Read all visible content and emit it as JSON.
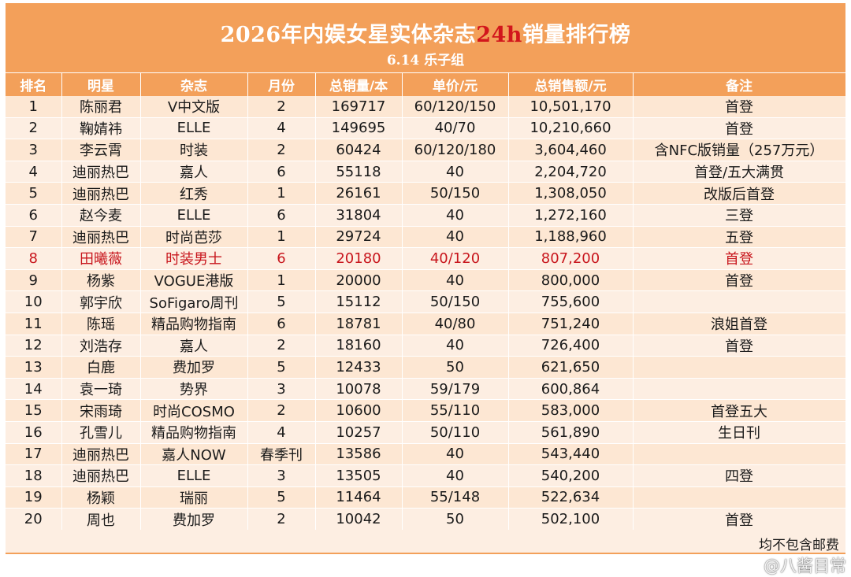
{
  "header": {
    "title_part1": "2026年内娱女星实体杂志",
    "title_accent": "24h",
    "title_part2": "销量排行榜",
    "subtitle": "6.14 乐子组"
  },
  "colors": {
    "header_orange": "#f3a05a",
    "row_peach": "#fde7d3",
    "accent_red": "#d2161c",
    "highlight_red": "#c8161d"
  },
  "table": {
    "columns": [
      "排名",
      "明星",
      "杂志",
      "月份",
      "总销量/本",
      "单价/元",
      "总销售额/元",
      "备注"
    ],
    "rows": [
      {
        "rank": "1",
        "star": "陈丽君",
        "magazine": "V中文版",
        "month": "2",
        "units": "169717",
        "price": "60/120/150",
        "revenue": "10,501,170",
        "note": "首登"
      },
      {
        "rank": "2",
        "star": "鞠婧祎",
        "magazine": "ELLE",
        "month": "4",
        "units": "149695",
        "price": "40/70",
        "revenue": "10,210,660",
        "note": "首登"
      },
      {
        "rank": "3",
        "star": "李云霄",
        "magazine": "时装",
        "month": "2",
        "units": "60424",
        "price": "60/120/180",
        "revenue": "3,604,460",
        "note": "含NFC版销量（257万元）"
      },
      {
        "rank": "4",
        "star": "迪丽热巴",
        "magazine": "嘉人",
        "month": "6",
        "units": "55118",
        "price": "40",
        "revenue": "2,204,720",
        "note": "首登/五大满贯"
      },
      {
        "rank": "5",
        "star": "迪丽热巴",
        "magazine": "红秀",
        "month": "1",
        "units": "26161",
        "price": "50/150",
        "revenue": "1,308,050",
        "note": "改版后首登"
      },
      {
        "rank": "6",
        "star": "赵今麦",
        "magazine": "ELLE",
        "month": "6",
        "units": "31804",
        "price": "40",
        "revenue": "1,272,160",
        "note": "三登"
      },
      {
        "rank": "7",
        "star": "迪丽热巴",
        "magazine": "时尚芭莎",
        "month": "1",
        "units": "29724",
        "price": "40",
        "revenue": "1,188,960",
        "note": "五登"
      },
      {
        "rank": "8",
        "star": "田曦薇",
        "magazine": "时装男士",
        "month": "6",
        "units": "20180",
        "price": "40/120",
        "revenue": "807,200",
        "note": "首登",
        "highlight": true
      },
      {
        "rank": "9",
        "star": "杨紫",
        "magazine": "VOGUE港版",
        "month": "1",
        "units": "20000",
        "price": "40",
        "revenue": "800,000",
        "note": "首登"
      },
      {
        "rank": "10",
        "star": "郭宇欣",
        "magazine": "SoFigaro周刊",
        "month": "5",
        "units": "15112",
        "price": "50/150",
        "revenue": "755,600",
        "note": ""
      },
      {
        "rank": "11",
        "star": "陈瑶",
        "magazine": "精品购物指南",
        "month": "6",
        "units": "18781",
        "price": "40/80",
        "revenue": "751,240",
        "note": "浪姐首登"
      },
      {
        "rank": "12",
        "star": "刘浩存",
        "magazine": "嘉人",
        "month": "2",
        "units": "18160",
        "price": "40",
        "revenue": "726,400",
        "note": "首登"
      },
      {
        "rank": "13",
        "star": "白鹿",
        "magazine": "费加罗",
        "month": "5",
        "units": "12433",
        "price": "50",
        "revenue": "621,650",
        "note": ""
      },
      {
        "rank": "14",
        "star": "袁一琦",
        "magazine": "势界",
        "month": "3",
        "units": "10078",
        "price": "59/179",
        "revenue": "600,864",
        "note": ""
      },
      {
        "rank": "15",
        "star": "宋雨琦",
        "magazine": "时尚COSMO",
        "month": "2",
        "units": "10600",
        "price": "55/110",
        "revenue": "583,000",
        "note": "首登五大"
      },
      {
        "rank": "16",
        "star": "孔雪儿",
        "magazine": "精品购物指南",
        "month": "4",
        "units": "10257",
        "price": "50/110",
        "revenue": "561,890",
        "note": "生日刊"
      },
      {
        "rank": "17",
        "star": "迪丽热巴",
        "magazine": "嘉人NOW",
        "month": "春季刊",
        "units": "13586",
        "price": "40",
        "revenue": "543,440",
        "note": ""
      },
      {
        "rank": "18",
        "star": "迪丽热巴",
        "magazine": "ELLE",
        "month": "3",
        "units": "13505",
        "price": "40",
        "revenue": "540,200",
        "note": "四登"
      },
      {
        "rank": "19",
        "star": "杨颖",
        "magazine": "瑞丽",
        "month": "5",
        "units": "11464",
        "price": "55/148",
        "revenue": "522,634",
        "note": ""
      },
      {
        "rank": "20",
        "star": "周也",
        "magazine": "费加罗",
        "month": "2",
        "units": "10042",
        "price": "50",
        "revenue": "502,100",
        "note": "首登"
      }
    ]
  },
  "footer": {
    "note": "均不包含邮费",
    "watermark": "@八酱目常"
  }
}
